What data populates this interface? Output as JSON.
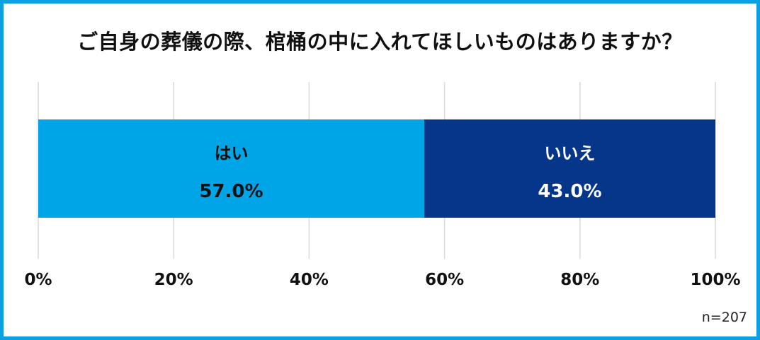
{
  "title": "ご自身の葬儀の際、棺桶の中に入れてほしいものはありますか？",
  "sample_size": "n=207",
  "chart_data": {
    "type": "bar",
    "orientation": "horizontal-stacked-100",
    "categories": [
      "はい",
      "いいえ"
    ],
    "values": [
      57.0,
      43.0
    ],
    "value_labels": [
      "57.0%",
      "43.0%"
    ],
    "colors": [
      "#00a5e8",
      "#053689"
    ],
    "label_colors": [
      "#111111",
      "#ffffff"
    ],
    "xlim": [
      0,
      100
    ],
    "xticks": [
      0,
      20,
      40,
      60,
      80,
      100
    ],
    "xtick_labels": [
      "0%",
      "20%",
      "40%",
      "60%",
      "80%",
      "100%"
    ],
    "grid": true,
    "legend": "none"
  }
}
